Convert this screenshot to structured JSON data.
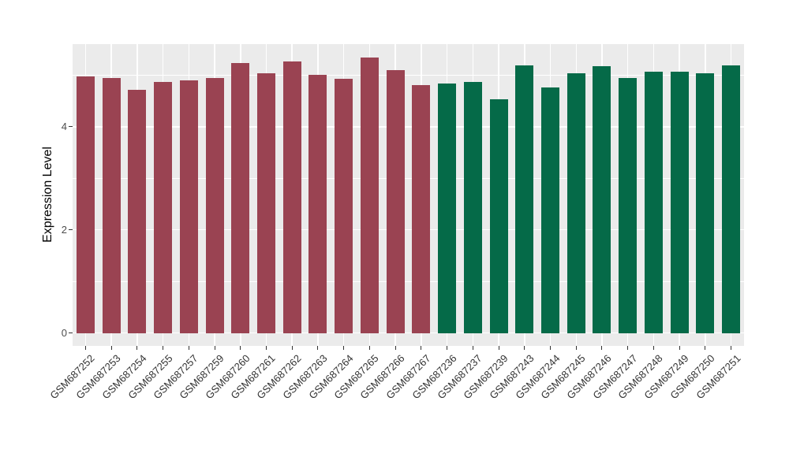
{
  "chart_data": {
    "type": "bar",
    "title": "",
    "xlabel": "",
    "ylabel": "Expression Level",
    "ylim": [
      -0.25,
      5.6
    ],
    "yticks": [
      0,
      2,
      4
    ],
    "grid": {
      "major": [
        0,
        2,
        4
      ],
      "minor": [
        1,
        3,
        5
      ]
    },
    "legend_position": "none",
    "categories": [
      "GSM687252",
      "GSM687253",
      "GSM687254",
      "GSM687255",
      "GSM687257",
      "GSM687259",
      "GSM687260",
      "GSM687261",
      "GSM687262",
      "GSM687263",
      "GSM687264",
      "GSM687265",
      "GSM687266",
      "GSM687267",
      "GSM687236",
      "GSM687237",
      "GSM687239",
      "GSM687243",
      "GSM687244",
      "GSM687245",
      "GSM687246",
      "GSM687247",
      "GSM687248",
      "GSM687249",
      "GSM687250",
      "GSM687251"
    ],
    "values": [
      4.98,
      4.95,
      4.72,
      4.86,
      4.9,
      4.94,
      5.23,
      5.04,
      5.26,
      5.0,
      4.93,
      5.34,
      5.1,
      4.8,
      4.83,
      4.87,
      4.53,
      5.19,
      4.76,
      5.03,
      5.17,
      4.94,
      5.06,
      5.07,
      5.03,
      5.18
    ],
    "bar_colors": [
      "#9A4352",
      "#9A4352",
      "#9A4352",
      "#9A4352",
      "#9A4352",
      "#9A4352",
      "#9A4352",
      "#9A4352",
      "#9A4352",
      "#9A4352",
      "#9A4352",
      "#9A4352",
      "#9A4352",
      "#9A4352",
      "#056A48",
      "#056A48",
      "#056A48",
      "#056A48",
      "#056A48",
      "#056A48",
      "#056A48",
      "#056A48",
      "#056A48",
      "#056A48",
      "#056A48",
      "#056A48"
    ],
    "colors": {
      "bar_group_left": "#9A4352",
      "bar_group_right": "#056A48",
      "panel_background": "#EBEBEB",
      "grid": "#FFFFFF",
      "tick_mark": "#333333",
      "tick_label": "#4D4D4D",
      "axis_title": "#000000"
    }
  }
}
